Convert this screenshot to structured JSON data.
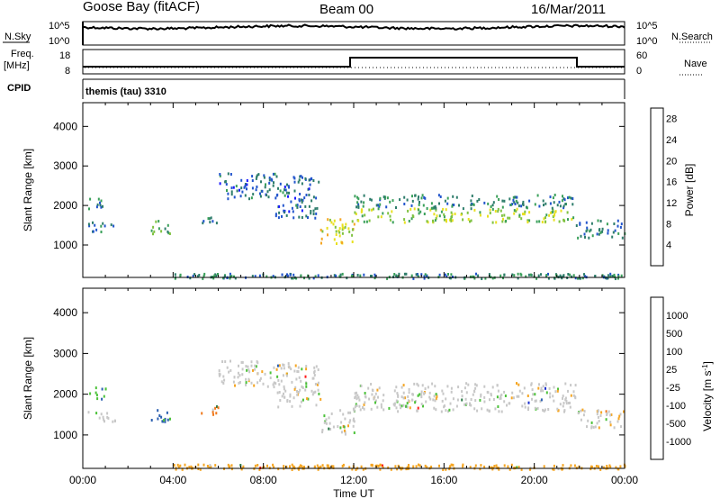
{
  "header": {
    "station": "Goose Bay (fitACF)",
    "beam": "Beam 00",
    "date": "16/Mar/2011"
  },
  "summary_panels": {
    "nsky_label": "N.Sky",
    "nsky_ticks": [
      "10^5",
      "10^0"
    ],
    "nsearch_label": "N.Search",
    "nsearch_ticks": [
      "10^5",
      "10^0"
    ],
    "freq_label_top": "Freq.",
    "freq_label_bottom": "[MHz]",
    "freq_ticks": [
      "18",
      "8"
    ],
    "nave_label": "Nave",
    "nave_ticks": [
      "60",
      "0"
    ],
    "cpid_label": "CPID",
    "cpid_value": "themis (tau) 3310"
  },
  "colors": {
    "power_scale": [
      "#1a1aff",
      "#2255cc",
      "#2e7d6b",
      "#3aa05a",
      "#7fc241",
      "#e8e020",
      "#f5a623",
      "#f07a1e",
      "#e8401c",
      "#ff0000"
    ],
    "velocity_scale": [
      "#1a2ecc",
      "#2b5fb0",
      "#2e7d4a",
      "#4cc23a",
      "#c8c8c8",
      "#c8c8c8",
      "#f5a623",
      "#f07a1e",
      "#ff1a1a"
    ]
  },
  "chart_data": [
    {
      "type": "heatmap",
      "name": "power",
      "ylabel": "Slant Range [km]",
      "yticks": [
        "1000",
        "2000",
        "3000",
        "4000"
      ],
      "ylim": [
        180,
        4600
      ],
      "xlim": [
        0,
        24
      ],
      "xticks": [
        "00:00",
        "04:00",
        "08:00",
        "12:00",
        "16:00",
        "20:00",
        "00:00"
      ],
      "colorbar_label": "Power [dB]",
      "colorbar_ticks": [
        "4",
        "8",
        "12",
        "16",
        "20",
        "24",
        "28"
      ],
      "clim": [
        0,
        30
      ],
      "regions": [
        {
          "t0": 0.2,
          "t1": 1.0,
          "r0": 1900,
          "r1": 2200,
          "level": 6
        },
        {
          "t0": 0.2,
          "t1": 1.5,
          "r0": 1350,
          "r1": 1600,
          "level": 6
        },
        {
          "t0": 3.0,
          "t1": 3.9,
          "r0": 1300,
          "r1": 1650,
          "level": 11
        },
        {
          "t0": 5.2,
          "t1": 6.0,
          "r0": 1500,
          "r1": 1750,
          "level": 6
        },
        {
          "t0": 6.0,
          "t1": 8.5,
          "r0": 2200,
          "r1": 2850,
          "level": 5
        },
        {
          "t0": 8.5,
          "t1": 10.5,
          "r0": 1700,
          "r1": 2800,
          "level": 5
        },
        {
          "t0": 10.5,
          "t1": 12.0,
          "r0": 1050,
          "r1": 1700,
          "level": 16
        },
        {
          "t0": 12.0,
          "t1": 21.8,
          "r0": 1600,
          "r1": 1950,
          "level": 14
        },
        {
          "t0": 12.0,
          "t1": 21.8,
          "r0": 1950,
          "r1": 2300,
          "level": 7
        },
        {
          "t0": 21.8,
          "t1": 24.0,
          "r0": 1200,
          "r1": 1650,
          "level": 6
        },
        {
          "t0": 4.0,
          "t1": 24.0,
          "r0": 180,
          "r1": 300,
          "level": 7
        }
      ]
    },
    {
      "type": "heatmap",
      "name": "velocity",
      "ylabel": "Slant Range [km]",
      "yticks": [
        "1000",
        "2000",
        "3000",
        "4000"
      ],
      "ylim": [
        180,
        4600
      ],
      "xlim": [
        0,
        24
      ],
      "xticks": [
        "00:00",
        "04:00",
        "08:00",
        "12:00",
        "16:00",
        "20:00",
        "00:00"
      ],
      "xlabel": "Time UT",
      "colorbar_label_main": "Velocity  [m s",
      "colorbar_label_sup": "-1",
      "colorbar_label_end": "]",
      "colorbar_ticks": [
        "1000",
        "500",
        "100",
        "25",
        "-25",
        "-100",
        "-500",
        "-1000"
      ],
      "regions": [
        {
          "t0": 0.2,
          "t1": 1.0,
          "r0": 1900,
          "r1": 2200,
          "vel": 80
        },
        {
          "t0": 0.2,
          "t1": 1.5,
          "r0": 1350,
          "r1": 1600,
          "vel": 0
        },
        {
          "t0": 3.0,
          "t1": 3.9,
          "r0": 1300,
          "r1": 1650,
          "vel": 120
        },
        {
          "t0": 5.2,
          "t1": 6.0,
          "r0": 1500,
          "r1": 1750,
          "vel": -300
        },
        {
          "t0": 6.0,
          "t1": 8.5,
          "r0": 2200,
          "r1": 2850,
          "vel": 0
        },
        {
          "t0": 8.5,
          "t1": 10.5,
          "r0": 1700,
          "r1": 2800,
          "vel": 0
        },
        {
          "t0": 10.5,
          "t1": 12.0,
          "r0": 1050,
          "r1": 1700,
          "vel": 0
        },
        {
          "t0": 12.0,
          "t1": 21.8,
          "r0": 1600,
          "r1": 2300,
          "vel": 0
        },
        {
          "t0": 21.8,
          "t1": 24.0,
          "r0": 1200,
          "r1": 1650,
          "vel": 0
        },
        {
          "t0": 4.0,
          "t1": 24.0,
          "r0": 180,
          "r1": 300,
          "vel": -60
        }
      ]
    }
  ]
}
